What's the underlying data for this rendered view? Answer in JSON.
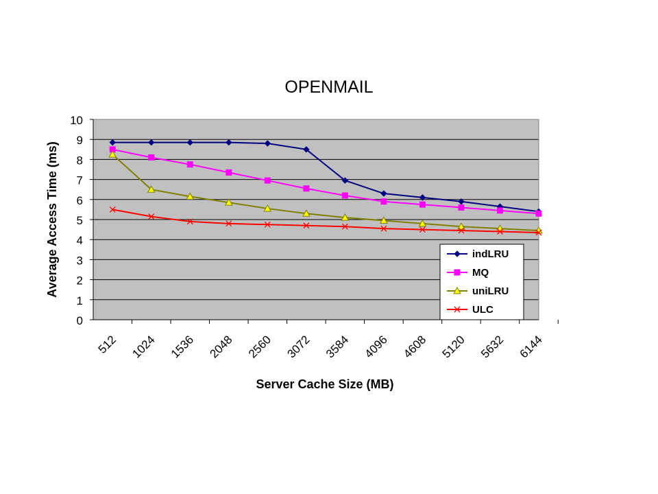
{
  "chart_data": {
    "type": "line",
    "title": "OPENMAIL",
    "xlabel": "Server Cache Size (MB)",
    "ylabel": "Average Access Time (ms)",
    "categories": [
      "512",
      "1024",
      "1536",
      "2048",
      "2560",
      "3072",
      "3584",
      "4096",
      "4608",
      "5120",
      "5632",
      "6144"
    ],
    "ylim": [
      0,
      10
    ],
    "yticks": [
      0,
      1,
      2,
      3,
      4,
      5,
      6,
      7,
      8,
      9,
      10
    ],
    "grid": true,
    "legend_position": "right",
    "plot_background": "#c0c0c0",
    "series": [
      {
        "name": "indLRU",
        "color": "#000080",
        "marker": "diamond",
        "values": [
          8.85,
          8.85,
          8.85,
          8.85,
          8.8,
          8.5,
          6.95,
          6.3,
          6.1,
          5.9,
          5.65,
          5.4
        ]
      },
      {
        "name": "MQ",
        "color": "#ff00ff",
        "marker": "square",
        "values": [
          8.5,
          8.1,
          7.75,
          7.35,
          6.95,
          6.55,
          6.2,
          5.9,
          5.75,
          5.6,
          5.45,
          5.3
        ]
      },
      {
        "name": "uniLRU",
        "color": "#808000",
        "marker": "triangle",
        "values": [
          8.25,
          6.5,
          6.15,
          5.85,
          5.55,
          5.3,
          5.1,
          4.95,
          4.8,
          4.65,
          4.55,
          4.45
        ]
      },
      {
        "name": "ULC",
        "color": "#ff0000",
        "marker": "x",
        "values": [
          5.5,
          5.15,
          4.9,
          4.8,
          4.75,
          4.7,
          4.65,
          4.55,
          4.5,
          4.45,
          4.4,
          4.35
        ]
      }
    ]
  }
}
